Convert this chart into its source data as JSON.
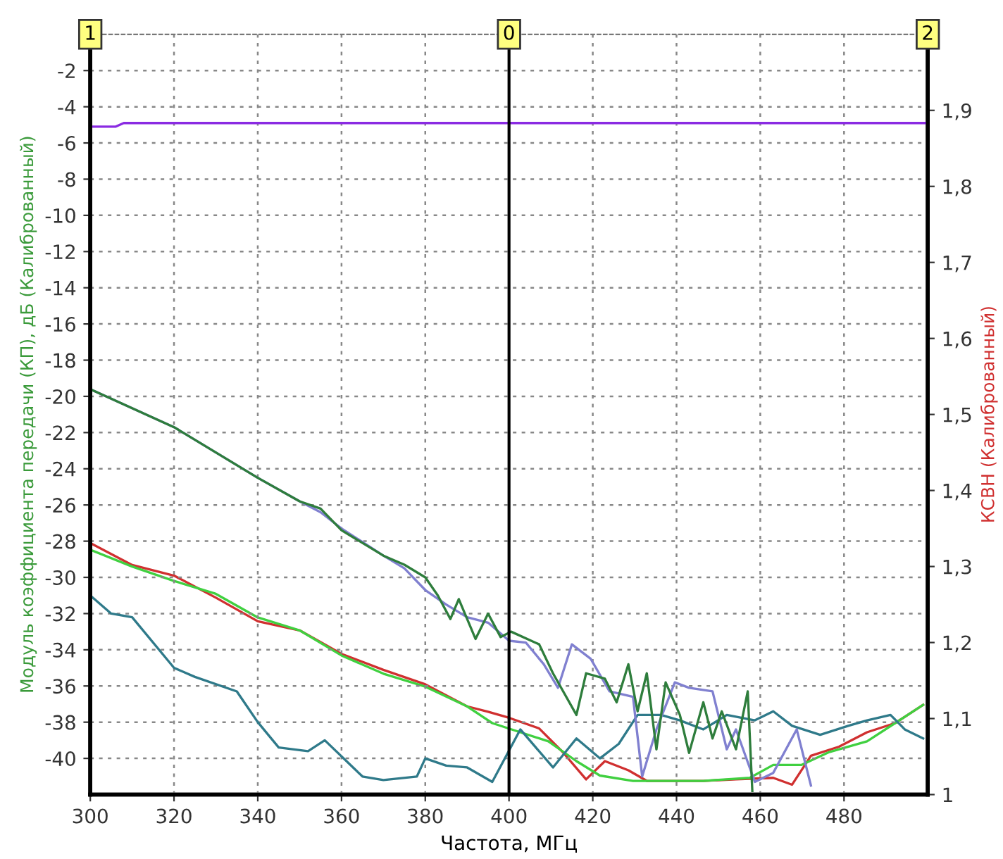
{
  "chart_data": {
    "type": "line",
    "xlabel": "Частота, МГц",
    "ylabel": "Модуль коэффициента передачи (КП), дБ (Калиброванный)",
    "y2label": "КСВН (Калиброванный)",
    "xlim": [
      300,
      500
    ],
    "xticks": [
      300,
      320,
      340,
      360,
      380,
      400,
      420,
      440,
      460,
      480
    ],
    "ylim": [
      -42,
      0
    ],
    "yticks": [
      -40,
      -38,
      -36,
      -34,
      -32,
      -30,
      -28,
      -26,
      -24,
      -22,
      -20,
      -18,
      -16,
      -14,
      -12,
      -10,
      -8,
      -6,
      -4,
      -2
    ],
    "y2lim": [
      1,
      2
    ],
    "y2ticks": [
      {
        "value": 1,
        "label": "1"
      },
      {
        "value": 1.1,
        "label": "1,1"
      },
      {
        "value": 1.2,
        "label": "1,2"
      },
      {
        "value": 1.3,
        "label": "1,3"
      },
      {
        "value": 1.4,
        "label": "1,4"
      },
      {
        "value": 1.5,
        "label": "1,5"
      },
      {
        "value": 1.6,
        "label": "1,6"
      },
      {
        "value": 1.7,
        "label": "1,7"
      },
      {
        "value": 1.8,
        "label": "1,8"
      },
      {
        "value": 1.9,
        "label": "1,9"
      }
    ],
    "grid": true,
    "legend": false,
    "marker": "none",
    "line_style": "solid",
    "ref_lines": [
      {
        "axis": "x",
        "value": 400,
        "color": "#000000"
      }
    ],
    "annotations": [
      {
        "text": "1",
        "x": 300,
        "y": 0
      },
      {
        "text": "0",
        "x": 400,
        "y": 0
      },
      {
        "text": "2",
        "x": 500,
        "y": 0
      }
    ],
    "series": [
      {
        "color": "#8a2be2",
        "x": [
          300,
          306,
          308,
          500
        ],
        "values": [
          -5.1,
          -5.1,
          -4.9,
          -4.9
        ]
      },
      {
        "color": "#2f7a8a",
        "x": [
          300,
          305,
          310,
          320,
          325,
          335,
          340,
          345,
          352,
          356,
          365,
          370,
          378,
          380,
          385,
          390,
          396.0,
          402.7,
          410.5,
          416.1,
          421.7,
          426.2,
          430.7,
          436.3,
          440.8,
          446.4,
          452.0,
          458.7,
          463.1,
          467.6,
          474.3,
          481.0,
          485.5,
          491.1,
          494.5,
          498.9
        ],
        "values": [
          -31,
          -32,
          -32.2,
          -35,
          -35.5,
          -36.3,
          -38,
          -39.4,
          -39.6,
          -39,
          -41,
          -41.2,
          -41,
          -40,
          -40.4,
          -40.5,
          -41.3,
          -38.4,
          -40.5,
          -38.9,
          -40.0,
          -39.2,
          -37.6,
          -37.6,
          -37.9,
          -38.4,
          -37.6,
          -37.9,
          -37.4,
          -38.2,
          -38.7,
          -38.2,
          -37.9,
          -37.6,
          -38.4,
          -38.9
        ]
      },
      {
        "color": "#8080d0",
        "x": [
          300,
          320,
          340,
          350,
          355,
          360,
          370,
          375,
          380,
          385,
          390,
          395,
          400,
          404,
          408.3,
          411.7,
          415.0,
          419.5,
          424.0,
          429.6,
          431.8,
          435.2,
          439.6,
          443.0,
          448.6,
          452.0,
          454.2,
          458.7,
          463.1,
          468.7,
          472.1
        ],
        "values": [
          -19.6,
          -21.7,
          -24.5,
          -25.8,
          -26.4,
          -27.3,
          -28.8,
          -29.5,
          -30.7,
          -31.5,
          -32.2,
          -32.5,
          -33.5,
          -33.6,
          -34.8,
          -36.1,
          -33.7,
          -34.5,
          -36.3,
          -36.6,
          -41.0,
          -38.4,
          -35.8,
          -36.1,
          -36.3,
          -39.5,
          -38.4,
          -41.3,
          -40.8,
          -38.4,
          -41.5
        ]
      },
      {
        "color": "#2e7d3c",
        "x": [
          300,
          320,
          340,
          350,
          355,
          360,
          370,
          375,
          380,
          383,
          386,
          388,
          392,
          395,
          398,
          400.5,
          407.2,
          410.5,
          416.1,
          418.4,
          422.9,
          425.7,
          428.5,
          430.7,
          432.9,
          435.2,
          437.4,
          440.8,
          443.0,
          446.4,
          448.6,
          450.8,
          454.2,
          457.0,
          458.1
        ],
        "values": [
          -19.6,
          -21.7,
          -24.5,
          -25.8,
          -26.2,
          -27.4,
          -28.8,
          -29.3,
          -30,
          -31,
          -32.3,
          -31.2,
          -33.4,
          -32,
          -33.3,
          -33.0,
          -33.7,
          -35.3,
          -37.6,
          -35.3,
          -35.6,
          -36.9,
          -34.8,
          -37.4,
          -35.3,
          -39.5,
          -35.8,
          -37.6,
          -39.7,
          -36.9,
          -38.9,
          -37.4,
          -39.5,
          -36.3,
          -41.8
        ]
      },
      {
        "color": "#d03030",
        "axis": "y2",
        "x": [
          300,
          310,
          320,
          330,
          340,
          350,
          360,
          370,
          380,
          390,
          395,
          400,
          407.2,
          412.8,
          418.4,
          422.9,
          428.5,
          432.9,
          446.4,
          454.2,
          463.1,
          467.6,
          472.1,
          478.8,
          485.5,
          492.2,
          498.9
        ],
        "values": [
          1.331,
          1.302,
          1.288,
          1.259,
          1.228,
          1.216,
          1.185,
          1.164,
          1.145,
          1.116,
          1.109,
          1.101,
          1.087,
          1.056,
          1.02,
          1.044,
          1.032,
          1.018,
          1.018,
          1.02,
          1.022,
          1.013,
          1.051,
          1.063,
          1.082,
          1.094,
          1.118
        ]
      },
      {
        "color": "#40d040",
        "axis": "y2",
        "x": [
          300,
          310,
          320,
          330,
          340,
          350,
          360,
          370,
          380,
          390,
          396,
          402.7,
          409.4,
          416.1,
          421.7,
          429.6,
          446.4,
          457.5,
          463.1,
          469.8,
          476.5,
          485.5,
          492.2,
          498.9
        ],
        "values": [
          1.322,
          1.3,
          1.281,
          1.264,
          1.233,
          1.216,
          1.183,
          1.159,
          1.142,
          1.116,
          1.094,
          1.082,
          1.07,
          1.044,
          1.025,
          1.018,
          1.018,
          1.022,
          1.039,
          1.039,
          1.056,
          1.07,
          1.094,
          1.118
        ]
      }
    ]
  }
}
